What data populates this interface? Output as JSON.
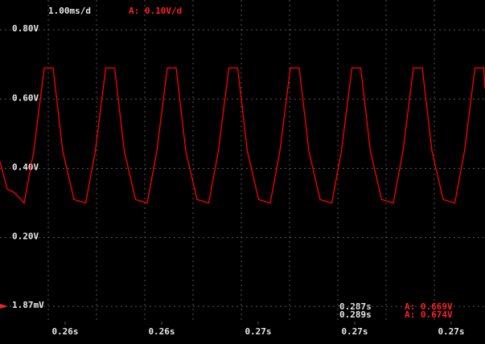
{
  "chart_data": {
    "type": "line",
    "timebase": "1.00ms/d",
    "channel_scale": "A: 0.10V/d",
    "cursor_times": [
      "0.287s",
      "0.289s"
    ],
    "cursor_values": [
      "A: 0.669V",
      "A: 0.674V"
    ],
    "grid": true,
    "xlim": [
      0.26065,
      0.2707
    ],
    "ylim": [
      -0.107,
      0.886
    ],
    "xticks": [
      {
        "value": 0.262,
        "label": "0.26s"
      },
      {
        "value": 0.264,
        "label": "0.26s"
      },
      {
        "value": 0.266,
        "label": "0.27s"
      },
      {
        "value": 0.268,
        "label": "0.27s"
      },
      {
        "value": 0.27,
        "label": "0.27s"
      }
    ],
    "yticks": [
      {
        "value": 0.8,
        "label": "0.80V"
      },
      {
        "value": 0.6,
        "label": "0.60V"
      },
      {
        "value": 0.4,
        "label": "0.40V"
      },
      {
        "value": 0.2,
        "label": "0.20V"
      },
      {
        "value": 0.00187,
        "label": "1.87mV"
      }
    ],
    "series": [
      {
        "color": "#ff0000",
        "x": [
          0.26065,
          0.2608,
          0.26095,
          0.26115,
          0.26135,
          0.261567,
          0.26175,
          0.26195,
          0.262183,
          0.262425,
          0.262625,
          0.262842,
          0.263025,
          0.263225,
          0.263458,
          0.2637,
          0.2639,
          0.264117,
          0.2643,
          0.2645,
          0.264733,
          0.264975,
          0.265175,
          0.265392,
          0.265575,
          0.265775,
          0.266008,
          0.26625,
          0.26645,
          0.266667,
          0.26685,
          0.26705,
          0.267283,
          0.267525,
          0.267725,
          0.267942,
          0.268125,
          0.268325,
          0.268558,
          0.2688,
          0.269,
          0.269217,
          0.2694,
          0.2696,
          0.269833,
          0.270075,
          0.270275,
          0.270492,
          0.270675,
          0.2707
        ],
        "values": [
          0.42,
          0.34,
          0.33,
          0.3,
          0.45,
          0.69,
          0.69,
          0.45,
          0.31,
          0.3,
          0.45,
          0.69,
          0.69,
          0.45,
          0.31,
          0.3,
          0.45,
          0.69,
          0.69,
          0.45,
          0.31,
          0.3,
          0.45,
          0.69,
          0.69,
          0.45,
          0.31,
          0.3,
          0.45,
          0.69,
          0.69,
          0.45,
          0.31,
          0.3,
          0.45,
          0.69,
          0.69,
          0.45,
          0.31,
          0.3,
          0.45,
          0.69,
          0.69,
          0.45,
          0.31,
          0.3,
          0.45,
          0.69,
          0.69,
          0.63
        ]
      }
    ]
  }
}
